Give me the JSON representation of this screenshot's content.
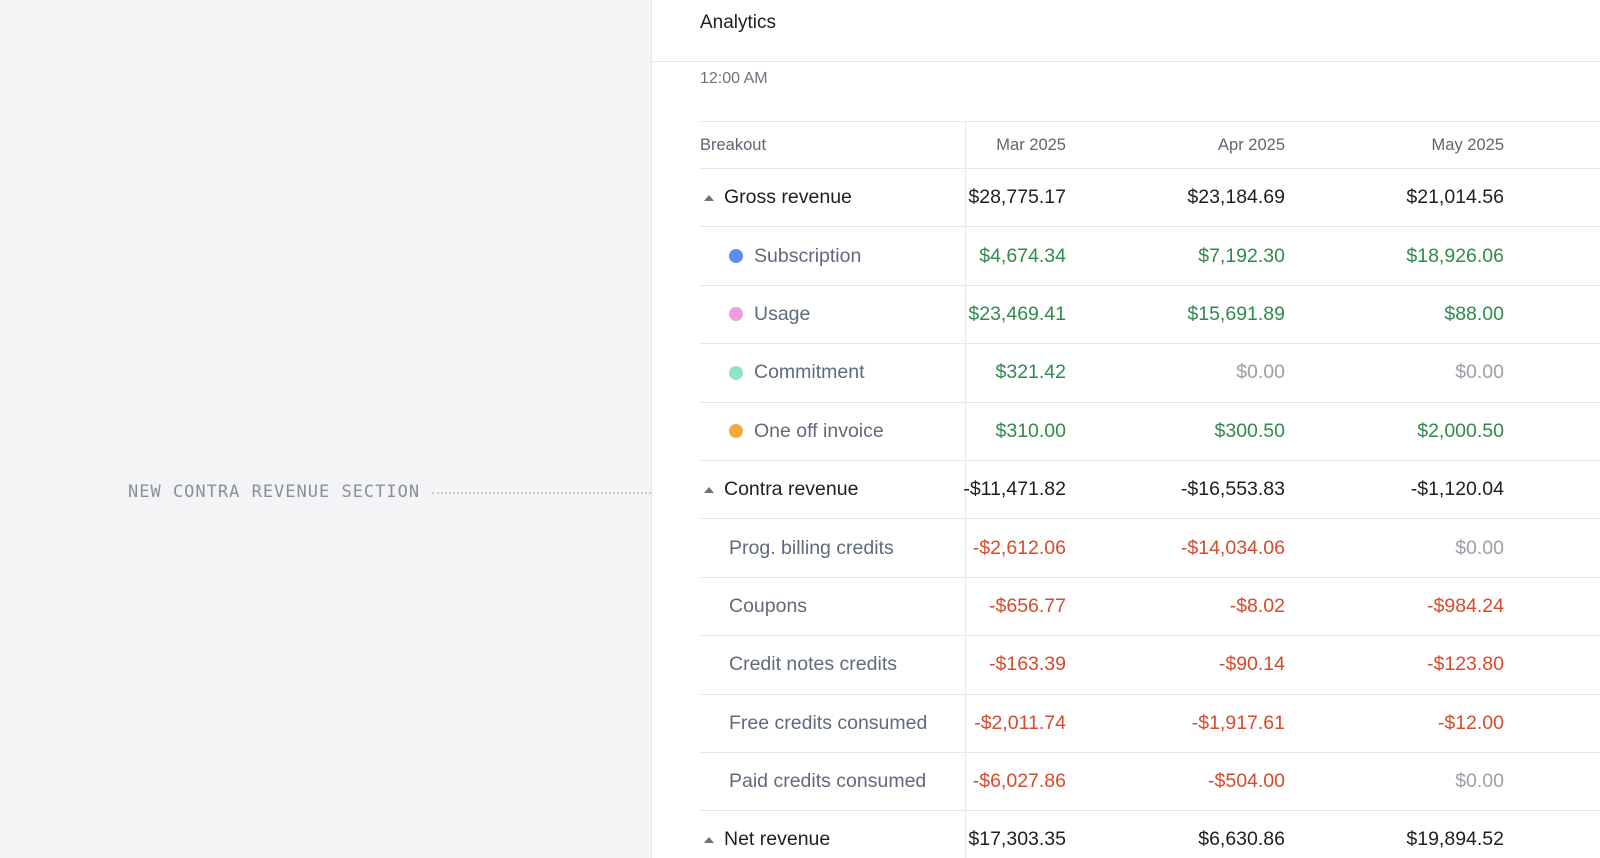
{
  "annotation": {
    "label": "NEW CONTRA REVENUE SECTION"
  },
  "panel": {
    "title": "Analytics",
    "time": "12:00 AM"
  },
  "table": {
    "header": {
      "label": "Breakout",
      "cols": [
        "Mar 2025",
        "Apr 2025",
        "May 2025"
      ]
    },
    "rows": {
      "gross": {
        "label": "Gross revenue",
        "vals": [
          "$28,775.17",
          "$23,184.69",
          "$21,014.56"
        ]
      },
      "subscription": {
        "label": "Subscription",
        "color": "#5b8def",
        "vals": [
          "$4,674.34",
          "$7,192.30",
          "$18,926.06"
        ]
      },
      "usage": {
        "label": "Usage",
        "color": "#ee9be0",
        "vals": [
          "$23,469.41",
          "$15,691.89",
          "$88.00"
        ]
      },
      "commitment": {
        "label": "Commitment",
        "color": "#8fe3c8",
        "vals": [
          "$321.42",
          "$0.00",
          "$0.00"
        ]
      },
      "oneoff": {
        "label": "One off invoice",
        "color": "#f2ab3a",
        "vals": [
          "$310.00",
          "$300.50",
          "$2,000.50"
        ]
      },
      "contra": {
        "label": "Contra revenue",
        "vals": [
          "-$11,471.82",
          "-$16,553.83",
          "-$1,120.04"
        ]
      },
      "prog": {
        "label": "Prog. billing credits",
        "vals": [
          "-$2,612.06",
          "-$14,034.06",
          "$0.00"
        ]
      },
      "coupons": {
        "label": "Coupons",
        "vals": [
          "-$656.77",
          "-$8.02",
          "-$984.24"
        ]
      },
      "creditnotes": {
        "label": "Credit notes credits",
        "vals": [
          "-$163.39",
          "-$90.14",
          "-$123.80"
        ]
      },
      "freecredits": {
        "label": "Free credits consumed",
        "vals": [
          "-$2,011.74",
          "-$1,917.61",
          "-$12.00"
        ]
      },
      "paidcredits": {
        "label": "Paid credits consumed",
        "vals": [
          "-$6,027.86",
          "-$504.00",
          "$0.00"
        ]
      },
      "net": {
        "label": "Net revenue",
        "vals": [
          "$17,303.35",
          "$6,630.86",
          "$19,894.52"
        ]
      }
    }
  }
}
